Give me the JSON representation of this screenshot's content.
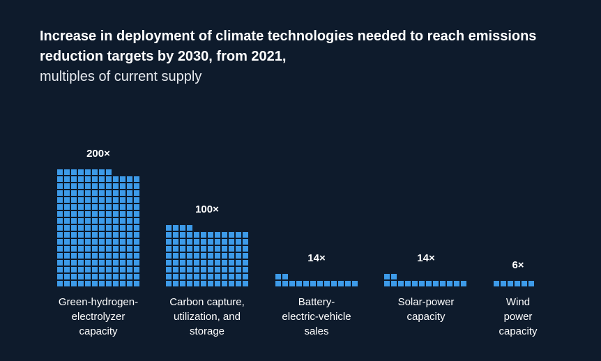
{
  "chart_data": {
    "type": "bar",
    "title": "Increase in deployment of climate technologies needed to reach emissions reduction targets by 2030, from 2021,",
    "subtitle": "multiples of current supply",
    "unit_suffix": "×",
    "bar_color": "#3d9be9",
    "background_color": "#0e1b2c",
    "categories": [
      [
        "Green-hydrogen-",
        "electrolyzer",
        "capacity"
      ],
      [
        "Carbon capture,",
        "utilization, and",
        "storage"
      ],
      [
        "Battery-",
        "electric-vehicle",
        "sales"
      ],
      [
        "Solar-power",
        "capacity"
      ],
      [
        "Wind",
        "power",
        "capacity"
      ]
    ],
    "values": [
      200,
      100,
      14,
      14,
      6
    ],
    "value_labels": [
      "200×",
      "100×",
      "14×",
      "14×",
      "6×"
    ]
  }
}
